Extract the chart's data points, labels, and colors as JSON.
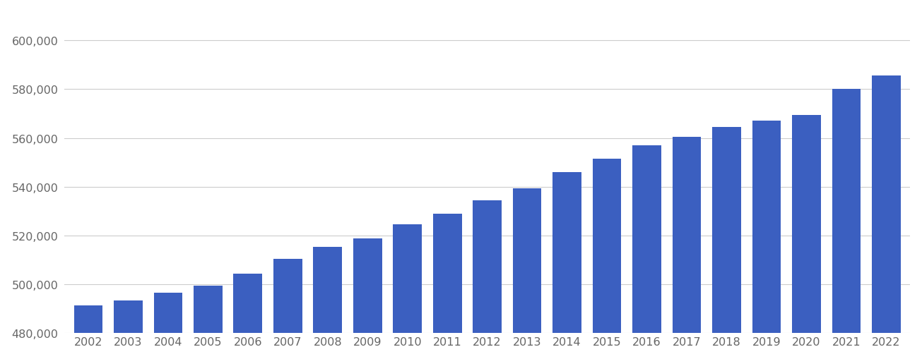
{
  "years": [
    2002,
    2003,
    2004,
    2005,
    2006,
    2007,
    2008,
    2009,
    2010,
    2011,
    2012,
    2013,
    2014,
    2015,
    2016,
    2017,
    2018,
    2019,
    2020,
    2021,
    2022
  ],
  "values": [
    491400,
    493500,
    496500,
    499500,
    504500,
    510500,
    515500,
    519000,
    524500,
    529000,
    534500,
    539500,
    546000,
    551500,
    557000,
    560500,
    564500,
    567000,
    569500,
    580000,
    585500
  ],
  "bar_color": "#3B5FC0",
  "background_color": "#ffffff",
  "grid_color": "#cccccc",
  "ylim": [
    480000,
    612000
  ],
  "yticks": [
    480000,
    500000,
    520000,
    540000,
    560000,
    580000,
    600000
  ],
  "tick_label_color": "#666666",
  "tick_fontsize": 11.5,
  "bar_bottom": 0
}
